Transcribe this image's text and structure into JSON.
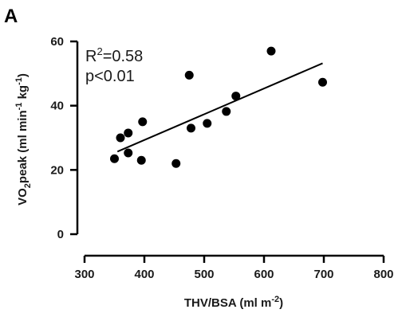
{
  "panel_label": "A",
  "chart_data": {
    "type": "scatter",
    "xlabel": "THV/BSA (ml m",
    "xlabel_sup": "-2",
    "xlabel_tail": ")",
    "ylabel_parts": {
      "a": "VO",
      "sub": "2",
      "b": "peak (ml min",
      "sup1": "-1",
      "c": " kg",
      "sup2": "-1",
      "d": ")"
    },
    "xlim": [
      300,
      800
    ],
    "ylim": [
      0,
      60
    ],
    "x_ticks": [
      300,
      400,
      500,
      600,
      700,
      800
    ],
    "y_ticks": [
      0,
      20,
      40,
      60
    ],
    "points": [
      {
        "x": 350,
        "y": 23.5
      },
      {
        "x": 360,
        "y": 30
      },
      {
        "x": 373,
        "y": 31.5
      },
      {
        "x": 373,
        "y": 25.3
      },
      {
        "x": 395,
        "y": 23
      },
      {
        "x": 397,
        "y": 35
      },
      {
        "x": 453,
        "y": 22
      },
      {
        "x": 475,
        "y": 49.5
      },
      {
        "x": 478,
        "y": 33
      },
      {
        "x": 505,
        "y": 34.5
      },
      {
        "x": 537,
        "y": 38.2
      },
      {
        "x": 553,
        "y": 43
      },
      {
        "x": 612,
        "y": 57
      },
      {
        "x": 698,
        "y": 47.3
      }
    ],
    "regression_line": {
      "x": [
        355,
        698
      ],
      "y": [
        25.7,
        53.2
      ]
    },
    "annotations": {
      "r2_prefix": "R",
      "r2_sup": "2",
      "r2_value": "=0.58",
      "p_text": "p<0.01"
    },
    "grid": false,
    "legend": "none",
    "point_color": "#000000",
    "line_color": "#000000"
  }
}
